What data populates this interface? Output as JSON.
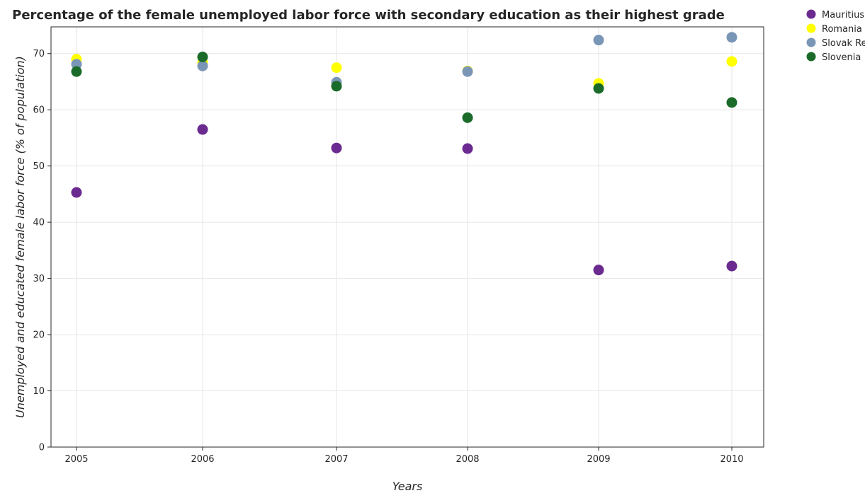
{
  "chart_data": {
    "type": "scatter",
    "title": "Percentage of the female unemployed labor force with secondary education as their highest grade",
    "xlabel": "Years",
    "ylabel": "Unemployed and educated female labor force (% of population)",
    "x": [
      "2005",
      "2006",
      "2007",
      "2008",
      "2009",
      "2010"
    ],
    "ylim": [
      0,
      75
    ],
    "yticks": [
      "0",
      "10",
      "20",
      "30",
      "40",
      "50",
      "60",
      "70"
    ],
    "grid": true,
    "legend": "top-right",
    "series": [
      {
        "name": "Mauritius",
        "color": "#6a2a8f",
        "values": [
          45.3,
          56.5,
          53.2,
          53.1,
          31.5,
          32.2
        ]
      },
      {
        "name": "Romania",
        "color": "#ffff00",
        "values": [
          69.0,
          68.4,
          67.5,
          66.9,
          64.7,
          68.6
        ]
      },
      {
        "name": "Slovak Republic",
        "color": "#7a96b6",
        "values": [
          68.1,
          67.8,
          64.9,
          66.8,
          72.4,
          72.9
        ]
      },
      {
        "name": "Slovenia",
        "color": "#1a6b2a",
        "values": [
          66.8,
          69.4,
          64.2,
          58.6,
          63.8,
          61.3
        ]
      }
    ]
  }
}
